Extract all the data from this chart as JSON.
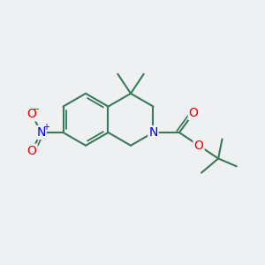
{
  "bg_color": "#eef0f2",
  "bond_color": "#3a7a5a",
  "bond_width": 1.5,
  "atom_colors": {
    "N": "#0000ee",
    "O": "#ee0000",
    "C": "#000000"
  },
  "font_size_atom": 10,
  "font_size_charge": 7
}
